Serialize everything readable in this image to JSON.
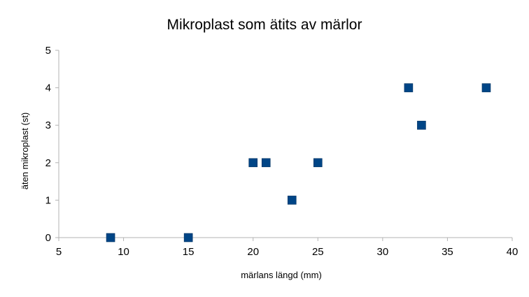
{
  "chart_data": {
    "type": "scatter",
    "title": "Mikroplast som ätits av märlor",
    "xlabel": "märlans längd (mm)",
    "ylabel": "äten mikroplast (st)",
    "xlim": [
      5,
      40
    ],
    "ylim": [
      0,
      5
    ],
    "xticks": [
      5,
      10,
      15,
      20,
      25,
      30,
      35,
      40
    ],
    "yticks": [
      0,
      1,
      2,
      3,
      4,
      5
    ],
    "grid": false,
    "legend": "none",
    "marker": "square",
    "colors": {
      "marker": "#004586",
      "axis": "#b3b3b3"
    },
    "series": [
      {
        "x": [
          9,
          15,
          20,
          21,
          23,
          25,
          32,
          33,
          38
        ],
        "y": [
          0,
          0,
          2,
          2,
          1,
          2,
          4,
          3,
          4
        ]
      }
    ]
  }
}
